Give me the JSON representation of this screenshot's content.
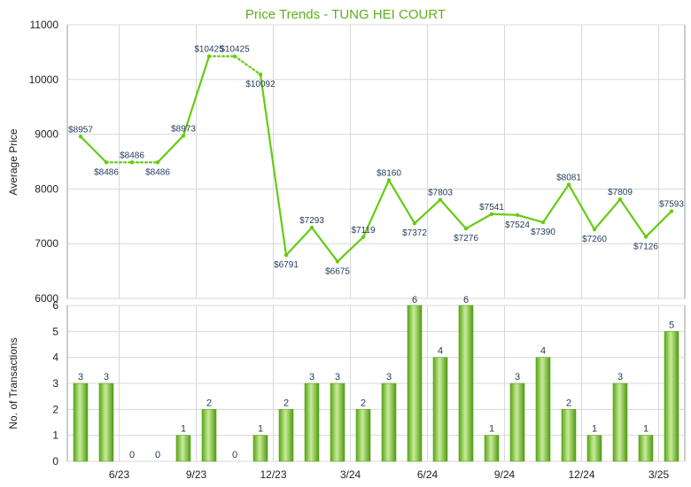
{
  "chart_data": [
    {
      "type": "line",
      "title": "Price Trends - TUNG HEI COURT",
      "ylabel": "Average Price",
      "ylim": [
        6000,
        11000
      ],
      "yticks": [
        6000,
        7000,
        8000,
        9000,
        10000,
        11000
      ],
      "grid": true,
      "series": [
        {
          "values": [
            8957,
            8486,
            8486,
            8486,
            8973,
            10425,
            10425,
            10092,
            6791,
            7293,
            6675,
            7119,
            8160,
            7372,
            7803,
            7276,
            7541,
            7524,
            7390,
            8081,
            7260,
            7809,
            7126,
            7593
          ],
          "labels": [
            "$8957",
            "$8486",
            "$8486",
            "$8486",
            "$8973",
            "$10425",
            "$10425",
            "$10092",
            "$6791",
            "$7293",
            "$6675",
            "$7119",
            "$8160",
            "$7372",
            "$7803",
            "$7276",
            "$7541",
            "$7524",
            "$7390",
            "$8081",
            "$7260",
            "$7809",
            "$7126",
            "$7593"
          ],
          "estimated": [
            false,
            false,
            true,
            false,
            false,
            false,
            true,
            false,
            false,
            false,
            false,
            false,
            false,
            false,
            false,
            false,
            false,
            false,
            false,
            false,
            false,
            false,
            false,
            false
          ]
        }
      ]
    },
    {
      "type": "bar",
      "ylabel": "No. of Transactions",
      "ylim": [
        0,
        6
      ],
      "yticks": [
        0,
        1,
        2,
        3,
        4,
        5,
        6
      ],
      "grid": true,
      "values": [
        3,
        3,
        0,
        0,
        1,
        2,
        0,
        1,
        2,
        3,
        3,
        2,
        3,
        6,
        4,
        6,
        1,
        3,
        4,
        2,
        1,
        3,
        1,
        5
      ],
      "xticks": [
        {
          "index": 2,
          "label": "6/23"
        },
        {
          "index": 5,
          "label": "9/23"
        },
        {
          "index": 8,
          "label": "12/23"
        },
        {
          "index": 11,
          "label": "3/24"
        },
        {
          "index": 14,
          "label": "6/24"
        },
        {
          "index": 17,
          "label": "9/24"
        },
        {
          "index": 20,
          "label": "12/24"
        },
        {
          "index": 23,
          "label": "3/25"
        }
      ]
    }
  ],
  "colors": {
    "line": "#66cc11",
    "bar_light": "#c8ec9a",
    "bar_mid": "#7ccc2a",
    "bar_dark": "#4f9a12",
    "grid": "#d8d8d8",
    "axis": "#999999",
    "title": "#5fae1f",
    "label": "#1f3a5a"
  }
}
